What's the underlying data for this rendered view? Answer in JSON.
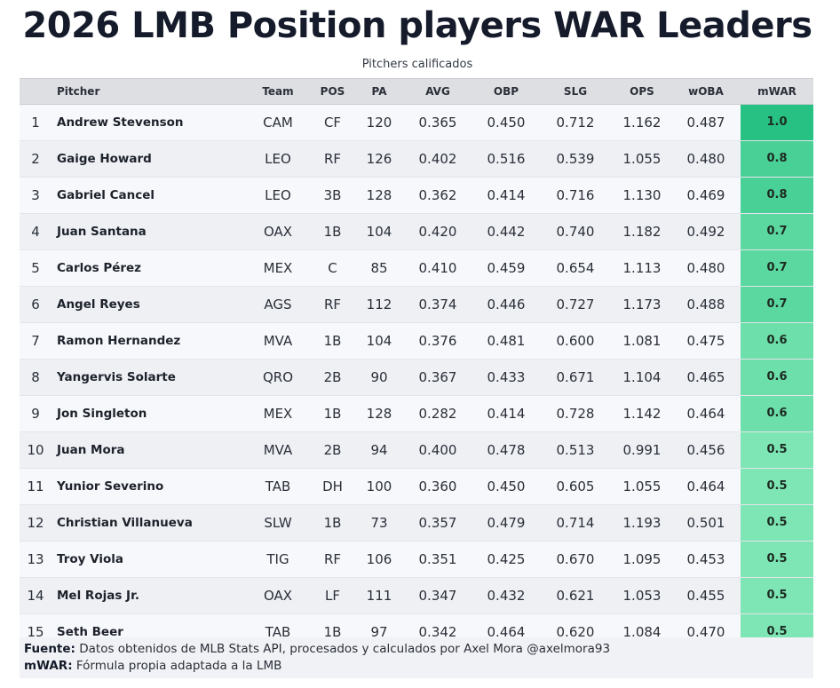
{
  "title": "2026 LMB Position players WAR Leaders",
  "subtitle": "Pitchers calificados",
  "colors": {
    "header_bg": "#dedfe3",
    "war_max": "#27c283",
    "war_min": "#7de6b4"
  },
  "columns": {
    "rank": "",
    "name": "Pitcher",
    "team": "Team",
    "pos": "POS",
    "pa": "PA",
    "avg": "AVG",
    "obp": "OBP",
    "slg": "SLG",
    "ops": "OPS",
    "woba": "wOBA",
    "war": "mWAR"
  },
  "footer": {
    "source_label": "Fuente:",
    "source_text": " Datos obtenidos de MLB Stats API, procesados y calculados por Axel Mora @axelmora93",
    "war_label": "mWAR:",
    "war_text": " Fórmula propia adaptada a la LMB"
  },
  "chart_data": {
    "type": "table",
    "title": "2026 LMB Position players WAR Leaders",
    "subtitle": "Pitchers calificados",
    "columns": [
      "",
      "Pitcher",
      "Team",
      "POS",
      "PA",
      "AVG",
      "OBP",
      "SLG",
      "OPS",
      "wOBA",
      "mWAR"
    ],
    "rows": [
      {
        "rank": "1",
        "name": "Andrew Stevenson",
        "team": "CAM",
        "pos": "CF",
        "pa": "120",
        "avg": "0.365",
        "obp": "0.450",
        "slg": "0.712",
        "ops": "1.162",
        "woba": "0.487",
        "war": "1.0"
      },
      {
        "rank": "2",
        "name": "Gaige Howard",
        "team": "LEO",
        "pos": "RF",
        "pa": "126",
        "avg": "0.402",
        "obp": "0.516",
        "slg": "0.539",
        "ops": "1.055",
        "woba": "0.480",
        "war": "0.8"
      },
      {
        "rank": "3",
        "name": "Gabriel Cancel",
        "team": "LEO",
        "pos": "3B",
        "pa": "128",
        "avg": "0.362",
        "obp": "0.414",
        "slg": "0.716",
        "ops": "1.130",
        "woba": "0.469",
        "war": "0.8"
      },
      {
        "rank": "4",
        "name": "Juan Santana",
        "team": "OAX",
        "pos": "1B",
        "pa": "104",
        "avg": "0.420",
        "obp": "0.442",
        "slg": "0.740",
        "ops": "1.182",
        "woba": "0.492",
        "war": "0.7"
      },
      {
        "rank": "5",
        "name": "Carlos Pérez",
        "team": "MEX",
        "pos": "C",
        "pa": "85",
        "avg": "0.410",
        "obp": "0.459",
        "slg": "0.654",
        "ops": "1.113",
        "woba": "0.480",
        "war": "0.7"
      },
      {
        "rank": "6",
        "name": "Angel Reyes",
        "team": "AGS",
        "pos": "RF",
        "pa": "112",
        "avg": "0.374",
        "obp": "0.446",
        "slg": "0.727",
        "ops": "1.173",
        "woba": "0.488",
        "war": "0.7"
      },
      {
        "rank": "7",
        "name": "Ramon Hernandez",
        "team": "MVA",
        "pos": "1B",
        "pa": "104",
        "avg": "0.376",
        "obp": "0.481",
        "slg": "0.600",
        "ops": "1.081",
        "woba": "0.475",
        "war": "0.6"
      },
      {
        "rank": "8",
        "name": "Yangervis Solarte",
        "team": "QRO",
        "pos": "2B",
        "pa": "90",
        "avg": "0.367",
        "obp": "0.433",
        "slg": "0.671",
        "ops": "1.104",
        "woba": "0.465",
        "war": "0.6"
      },
      {
        "rank": "9",
        "name": "Jon Singleton",
        "team": "MEX",
        "pos": "1B",
        "pa": "128",
        "avg": "0.282",
        "obp": "0.414",
        "slg": "0.728",
        "ops": "1.142",
        "woba": "0.464",
        "war": "0.6"
      },
      {
        "rank": "10",
        "name": "Juan Mora",
        "team": "MVA",
        "pos": "2B",
        "pa": "94",
        "avg": "0.400",
        "obp": "0.478",
        "slg": "0.513",
        "ops": "0.991",
        "woba": "0.456",
        "war": "0.5"
      },
      {
        "rank": "11",
        "name": "Yunior Severino",
        "team": "TAB",
        "pos": "DH",
        "pa": "100",
        "avg": "0.360",
        "obp": "0.450",
        "slg": "0.605",
        "ops": "1.055",
        "woba": "0.464",
        "war": "0.5"
      },
      {
        "rank": "12",
        "name": "Christian Villanueva",
        "team": "SLW",
        "pos": "1B",
        "pa": "73",
        "avg": "0.357",
        "obp": "0.479",
        "slg": "0.714",
        "ops": "1.193",
        "woba": "0.501",
        "war": "0.5"
      },
      {
        "rank": "13",
        "name": "Troy Viola",
        "team": "TIG",
        "pos": "RF",
        "pa": "106",
        "avg": "0.351",
        "obp": "0.425",
        "slg": "0.670",
        "ops": "1.095",
        "woba": "0.453",
        "war": "0.5"
      },
      {
        "rank": "14",
        "name": "Mel Rojas Jr.",
        "team": "OAX",
        "pos": "LF",
        "pa": "111",
        "avg": "0.347",
        "obp": "0.432",
        "slg": "0.621",
        "ops": "1.053",
        "woba": "0.455",
        "war": "0.5"
      },
      {
        "rank": "15",
        "name": "Seth Beer",
        "team": "TAB",
        "pos": "1B",
        "pa": "97",
        "avg": "0.342",
        "obp": "0.464",
        "slg": "0.620",
        "ops": "1.084",
        "woba": "0.470",
        "war": "0.5"
      }
    ]
  }
}
